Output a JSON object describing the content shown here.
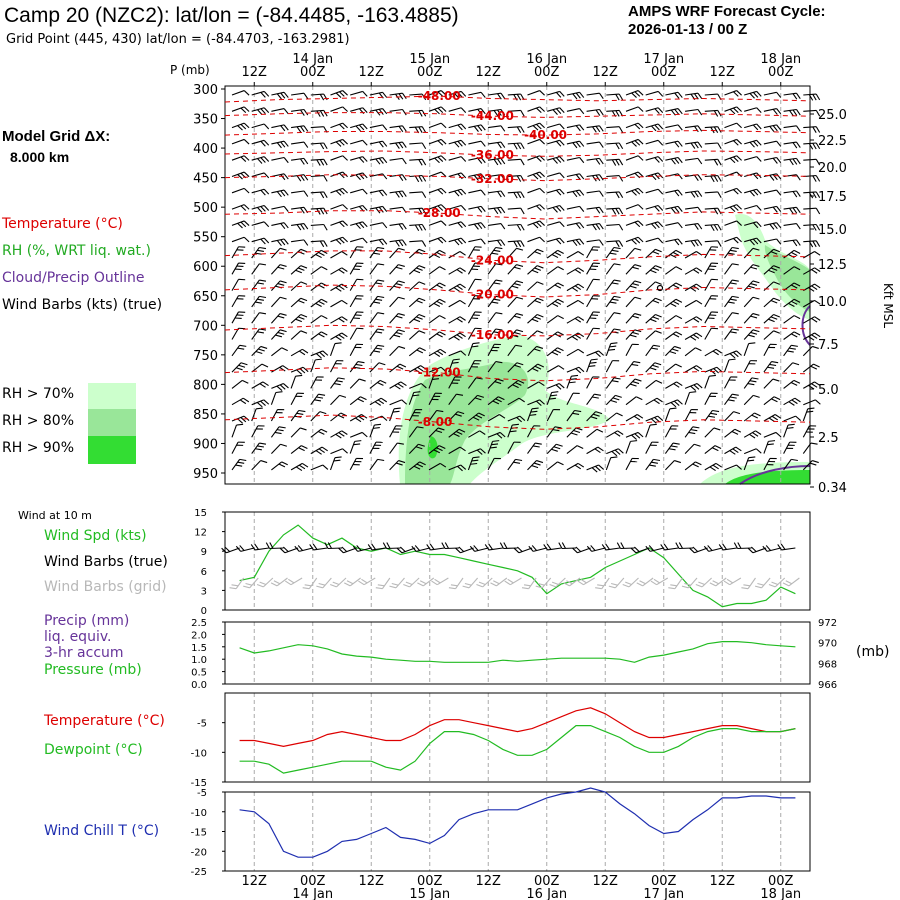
{
  "header": {
    "title": "Camp 20 (NZC2):  lat/lon = (-84.4485, -163.4885)",
    "grid_point": "Grid Point (445, 430) lat/lon = (-84.4703, -163.2981)",
    "cycle_line1": "AMPS WRF Forecast Cycle:",
    "cycle_line2": "2026-01-13 / 00  Z",
    "grid_res_line1": "Model Grid ΔX:",
    "grid_res_line2": "8.000 km"
  },
  "legend": {
    "temperature": "Temperature (°C)",
    "rh": "RH (%, WRT liq. wat.)",
    "cloud": "Cloud/Precip Outline",
    "wind": "Wind Barbs (kts) (true)",
    "rh70": "RH > 70%",
    "rh80": "RH > 80%",
    "rh90": "RH > 90%",
    "colors": {
      "rh70": "#ccffcc",
      "rh80": "#99e699",
      "rh90": "#33dd33",
      "temperature": "#dd0000",
      "cloud": "#663399"
    }
  },
  "panel_labels": {
    "p_axis": "P (mb)",
    "kft": "Kft MSL",
    "wind10m": "Wind at 10 m",
    "wind_spd": "Wind Spd (kts)",
    "wind_barbs_true": "Wind Barbs (true)",
    "wind_barbs_grid": "Wind Barbs (grid)",
    "precip1": "Precip (mm)",
    "precip2": "liq. equiv.",
    "precip3": "3-hr accum",
    "pressure": "Pressure (mb)",
    "mb_unit": "(mb)",
    "temperature": "Temperature (°C)",
    "dewpoint": "Dewpoint (°C)",
    "windchill": "Wind Chill T (°C)"
  },
  "time_axis": {
    "hour_ticks": [
      "12Z",
      "00Z",
      "12Z",
      "00Z",
      "12Z",
      "00Z",
      "12Z",
      "00Z",
      "12Z",
      "00Z"
    ],
    "date_ticks": [
      {
        "label": "14 Jan",
        "index": 1
      },
      {
        "label": "15 Jan",
        "index": 3
      },
      {
        "label": "16 Jan",
        "index": 5
      },
      {
        "label": "17 Jan",
        "index": 7
      },
      {
        "label": "18 Jan",
        "index": 9
      }
    ]
  },
  "chart_data": [
    {
      "type": "heatmap",
      "name": "sounding",
      "pressure_ticks": [
        "300",
        "350",
        "400",
        "450",
        "500",
        "550",
        "600",
        "650",
        "700",
        "750",
        "800",
        "850",
        "900",
        "950"
      ],
      "height_ticks": [
        "25.0",
        "22.5",
        "20.0",
        "17.5",
        "15.0",
        "12.5",
        "10.0",
        "7.5",
        "5.0",
        "2.5",
        "0.34"
      ],
      "isotherms": [
        {
          "label": "-48.00",
          "p": [
            322,
            318,
            316,
            314,
            312,
            316,
            318,
            320,
            318,
            316,
            318,
            320
          ]
        },
        {
          "label": "-44.00",
          "p": [
            345,
            342,
            340,
            340,
            342,
            346,
            348,
            346,
            344,
            342,
            344,
            346
          ]
        },
        {
          "label": "-40.00",
          "p": [
            378,
            375,
            372,
            372,
            374,
            377,
            378,
            376,
            372,
            370,
            372,
            374
          ]
        },
        {
          "label": "-36.00",
          "p": [
            410,
            408,
            406,
            405,
            408,
            412,
            414,
            412,
            408,
            405,
            406,
            408
          ]
        },
        {
          "label": "-32.00",
          "p": [
            450,
            448,
            445,
            446,
            448,
            452,
            455,
            452,
            448,
            445,
            446,
            448
          ]
        },
        {
          "label": "-28.00",
          "p": [
            512,
            510,
            506,
            506,
            510,
            516,
            520,
            516,
            512,
            508,
            510,
            512
          ]
        },
        {
          "label": "-24.00",
          "p": [
            582,
            578,
            574,
            574,
            580,
            590,
            594,
            590,
            584,
            580,
            582,
            584
          ]
        },
        {
          "label": "-20.00",
          "p": [
            640,
            636,
            632,
            634,
            640,
            648,
            652,
            648,
            640,
            636,
            638,
            640
          ]
        },
        {
          "label": "-16.00",
          "p": [
            708,
            704,
            700,
            702,
            708,
            716,
            718,
            714,
            706,
            702,
            704,
            706
          ]
        },
        {
          "label": "-12.00",
          "p": [
            780,
            776,
            772,
            774,
            780,
            790,
            794,
            790,
            782,
            778,
            780,
            782
          ]
        },
        {
          "label": "-8.00",
          "p": [
            860,
            856,
            852,
            856,
            864,
            872,
            876,
            872,
            864,
            860,
            862,
            864
          ]
        }
      ],
      "isotherm_label_index": [
        4,
        5,
        6,
        5,
        5,
        4,
        5,
        5,
        5,
        4,
        4
      ]
    },
    {
      "type": "line",
      "name": "wind10m",
      "ylim": [
        0,
        15
      ],
      "yticks": [
        "0",
        "3",
        "6",
        "9",
        "12",
        "15"
      ],
      "x": [
        "1/13 06Z",
        "09Z",
        "12Z",
        "15Z",
        "18Z",
        "21Z",
        "1/14 00Z",
        "03Z",
        "06Z",
        "09Z",
        "12Z",
        "15Z",
        "18Z",
        "21Z",
        "1/15 00Z",
        "03Z",
        "06Z",
        "09Z",
        "12Z",
        "15Z",
        "18Z",
        "21Z",
        "1/16 00Z",
        "03Z",
        "06Z",
        "09Z",
        "12Z",
        "15Z",
        "18Z",
        "21Z",
        "1/17 00Z",
        "03Z",
        "06Z",
        "09Z",
        "12Z",
        "15Z",
        "18Z",
        "21Z",
        "1/18 00Z"
      ],
      "series": [
        {
          "name": "Wind Spd (kts)",
          "color": "#22bb22",
          "values": [
            4.5,
            5,
            9,
            11.5,
            13,
            11,
            10,
            11,
            9.5,
            9,
            9.5,
            8.5,
            9,
            8.5,
            8.5,
            8,
            7.5,
            7,
            6.5,
            6,
            5,
            2.5,
            4,
            4.5,
            5,
            6.5,
            7.5,
            8.5,
            9.5,
            8,
            5.5,
            3,
            2,
            0.5,
            1,
            1,
            1.5,
            3.5,
            2.5
          ]
        }
      ]
    },
    {
      "type": "line",
      "name": "precip_pressure",
      "ylim": [
        0.0,
        2.5
      ],
      "yticks": [
        "0.0",
        "0.5",
        "1.0",
        "1.5",
        "2.0",
        "2.5"
      ],
      "right_yticks": [
        "966",
        "968",
        "970",
        "972"
      ],
      "right_ylim": [
        966,
        972
      ],
      "series": [
        {
          "name": "Pressure (mb)",
          "color": "#22bb22",
          "values": [
            969.5,
            969,
            969.2,
            969.5,
            969.8,
            969.7,
            969.4,
            968.9,
            968.7,
            968.6,
            968.4,
            968.3,
            968.2,
            968.2,
            968.1,
            968.1,
            968.1,
            968.1,
            968.3,
            968.2,
            968.3,
            968.4,
            968.5,
            968.5,
            968.5,
            968.5,
            968.4,
            968.1,
            968.6,
            968.8,
            969.1,
            969.4,
            969.9,
            970.1,
            970.1,
            970,
            969.8,
            969.7,
            969.6
          ]
        }
      ]
    },
    {
      "type": "line",
      "name": "temperature_dewpoint",
      "ylim": [
        -15,
        0
      ],
      "yticks": [
        "-15",
        "-10",
        "-5"
      ],
      "series": [
        {
          "name": "Temperature (°C)",
          "color": "#dd0000",
          "values": [
            -8,
            -8,
            -8.5,
            -9,
            -8.5,
            -8,
            -7,
            -6.5,
            -7,
            -7.5,
            -8,
            -8,
            -7,
            -5.5,
            -4.5,
            -4.5,
            -5,
            -5.5,
            -6,
            -6.5,
            -6,
            -5,
            -4,
            -3,
            -2.5,
            -3.5,
            -5,
            -6.5,
            -7.5,
            -7.5,
            -7,
            -6.5,
            -6,
            -5.5,
            -5.5,
            -6,
            -6.5,
            -6.5,
            -6
          ]
        },
        {
          "name": "Dewpoint (°C)",
          "color": "#22bb22",
          "values": [
            -11.5,
            -11.5,
            -12,
            -13.5,
            -13,
            -12.5,
            -12,
            -11.5,
            -11.5,
            -11.5,
            -12.5,
            -13,
            -11.5,
            -8.5,
            -6.5,
            -6.5,
            -7,
            -8,
            -9.5,
            -10.5,
            -10.5,
            -9.5,
            -7.5,
            -5.5,
            -5.5,
            -6.5,
            -7.5,
            -9,
            -10,
            -10,
            -9,
            -7.5,
            -6.5,
            -6,
            -6,
            -6.5,
            -6.5,
            -6.5,
            -6
          ]
        }
      ]
    },
    {
      "type": "line",
      "name": "windchill",
      "ylim": [
        -25,
        -5
      ],
      "yticks": [
        "-25",
        "-20",
        "-15",
        "-10",
        "-5"
      ],
      "series": [
        {
          "name": "Wind Chill T (°C)",
          "color": "#1f2fb0",
          "values": [
            -9.5,
            -10,
            -13,
            -20,
            -21.5,
            -21.5,
            -20,
            -17.5,
            -17,
            -15.5,
            -14,
            -16.5,
            -17,
            -18,
            -16,
            -12,
            -10.5,
            -9.5,
            -9.5,
            -9.5,
            -8,
            -6.5,
            -5.5,
            -5,
            -4,
            -5,
            -8,
            -10.5,
            -13.5,
            -15.5,
            -15,
            -12,
            -9.5,
            -6.5,
            -6.5,
            -6,
            -6,
            -6.5,
            -6.5
          ]
        }
      ]
    }
  ]
}
